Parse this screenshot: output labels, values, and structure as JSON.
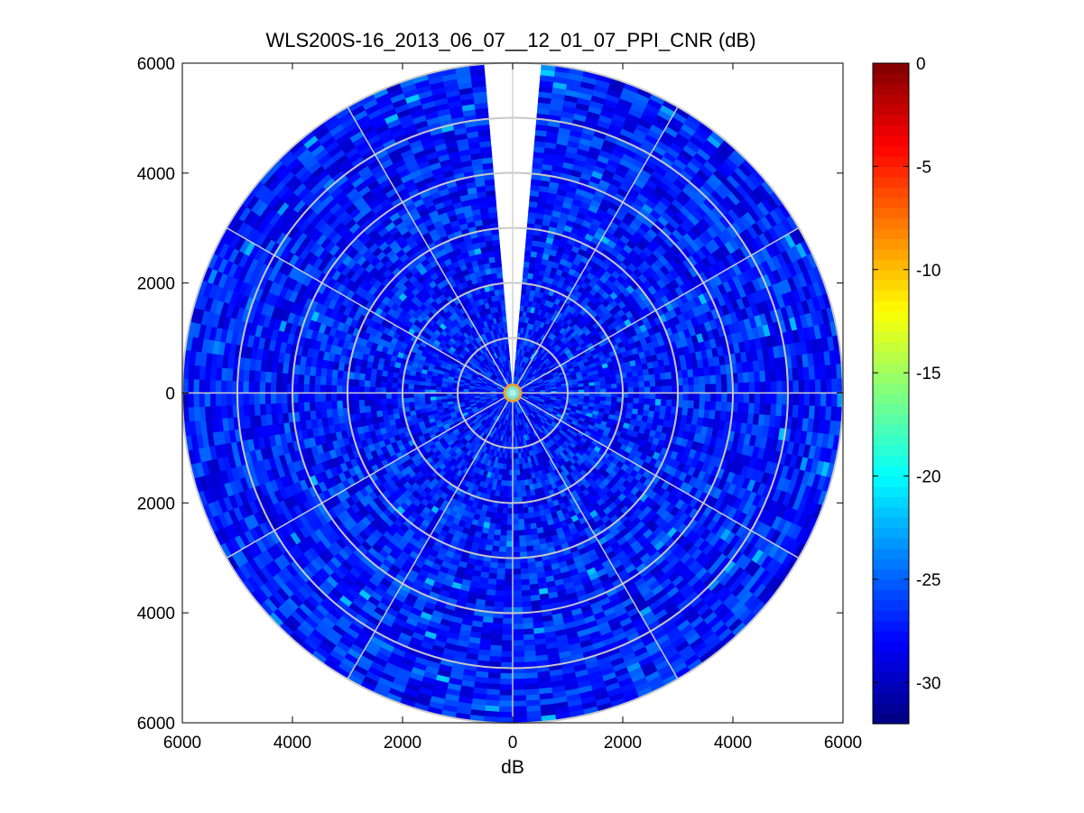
{
  "chart_data": {
    "type": "heatmap",
    "subtype": "polar-ppi",
    "title": "WLS200S-16_2013_06_07__12_01_07_PPI_CNR (dB)",
    "xlabel": "dB",
    "ylabel": "",
    "xlim": [
      -6000,
      6000
    ],
    "ylim": [
      -6000,
      6000
    ],
    "x_ticks": [
      -6000,
      -4000,
      -2000,
      0,
      2000,
      4000,
      6000
    ],
    "y_ticks": [
      -6000,
      -4000,
      -2000,
      0,
      2000,
      4000,
      6000
    ],
    "x_tick_labels": [
      "6000",
      "4000",
      "2000",
      "0",
      "2000",
      "4000",
      "6000"
    ],
    "y_tick_labels": [
      "6000",
      "4000",
      "2000",
      "0",
      "2000",
      "4000",
      "6000"
    ],
    "polar_grid": {
      "range_rings": [
        1000,
        2000,
        3000,
        4000,
        5000,
        6000
      ],
      "spoke_angles_deg": [
        0,
        30,
        60,
        90,
        120,
        150,
        180,
        210,
        240,
        270,
        300,
        330
      ],
      "max_range": 6000
    },
    "missing_sector_deg": [
      355,
      5
    ],
    "data_range_typical": [
      -30,
      -24
    ],
    "colorbar": {
      "colormap": "jet",
      "limits": [
        -32,
        0
      ],
      "ticks": [
        0,
        -5,
        -10,
        -15,
        -20,
        -25,
        -30
      ],
      "tick_labels": [
        "0",
        "-5",
        "-10",
        "-15",
        "-20",
        "-25",
        "-30"
      ]
    }
  }
}
